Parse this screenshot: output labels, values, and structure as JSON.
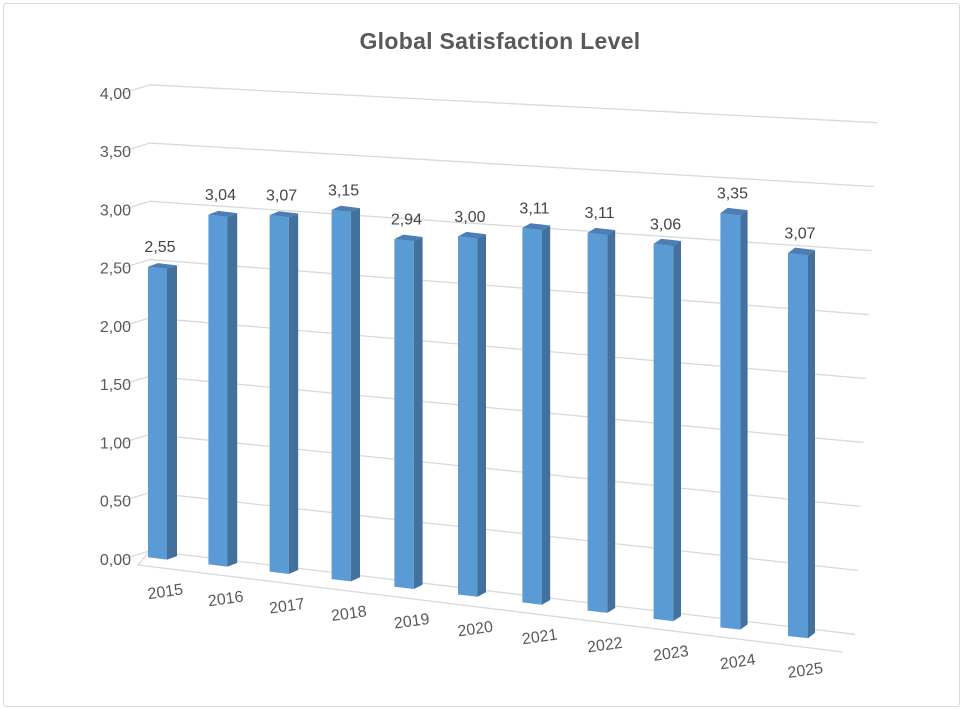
{
  "chart_data": {
    "type": "bar",
    "variant": "3d-column",
    "title": "Global Satisfaction Level",
    "categories": [
      "2015",
      "2016",
      "2017",
      "2018",
      "2019",
      "2020",
      "2021",
      "2022",
      "2023",
      "2024",
      "2025"
    ],
    "values": [
      2.55,
      3.04,
      3.07,
      3.15,
      2.94,
      3.0,
      3.11,
      3.11,
      3.06,
      3.35,
      3.07
    ],
    "value_labels": [
      "2,55",
      "3,04",
      "3,07",
      "3,15",
      "2,94",
      "3,00",
      "3,11",
      "3,11",
      "3,06",
      "3,35",
      "3,07"
    ],
    "y_ticks": [
      "0,00",
      "0,50",
      "1,00",
      "1,50",
      "2,00",
      "2,50",
      "3,00",
      "3,50",
      "4,00"
    ],
    "ylim": [
      0,
      4
    ],
    "y_step": 0.5,
    "xlabel": "",
    "ylabel": "",
    "legend": "none",
    "grid": true,
    "decimal_separator": ",",
    "colors": {
      "bar_front": "#5B9BD5",
      "bar_side": "#41719C",
      "bar_top": "#4A7EB5",
      "gridline": "#D9D9D9",
      "axis_text": "#595959",
      "data_label": "#444444",
      "title": "#595959",
      "frame_border": "#D9D9D9",
      "background": "#FFFFFF"
    }
  }
}
